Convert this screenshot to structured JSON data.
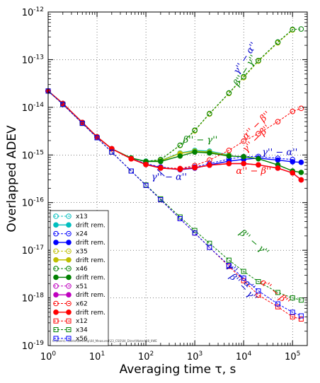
{
  "chart_data": {
    "type": "line",
    "xscale": "log",
    "yscale": "log",
    "xlabel": "Averaging time τ, s",
    "ylabel": "Overlapped ADEV",
    "xlim": [
      1,
      200000
    ],
    "ylim": [
      1e-19,
      1e-12
    ],
    "grid": true,
    "legend_placement": "lower-left",
    "x_ticks": [
      1,
      10,
      100,
      1000,
      10000,
      100000
    ],
    "x_tick_labels": [
      [
        "10",
        "0"
      ],
      [
        "10",
        "1"
      ],
      [
        "10",
        "2"
      ],
      [
        "10",
        "3"
      ],
      [
        "10",
        "4"
      ],
      [
        "10",
        "5"
      ]
    ],
    "y_ticks": [
      1e-19,
      1e-18,
      1e-17,
      1e-16,
      1e-15,
      1e-14,
      1e-13,
      1e-12
    ],
    "y_tick_labels": [
      [
        "10",
        "-19"
      ],
      [
        "10",
        "-18"
      ],
      [
        "10",
        "-17"
      ],
      [
        "10",
        "-16"
      ],
      [
        "10",
        "-15"
      ],
      [
        "10",
        "-14"
      ],
      [
        "10",
        "-13"
      ],
      [
        "10",
        "-12"
      ]
    ],
    "footer_text": "C:\\Users\\...\\Sintel\\Develop\\04_Measured\\23_CSO\\04_Direct\\Notes\\08_IIWE",
    "series": [
      {
        "name": "x13",
        "color": "#00bfbf",
        "marker": "open-circle",
        "dashed": true,
        "x": [
          1,
          2,
          5,
          10,
          20,
          50,
          100,
          200,
          500,
          1000,
          2000,
          5000,
          10000,
          20000,
          50000,
          100000
        ],
        "y": [
          2.2e-14,
          1.2e-14,
          4.8e-15,
          2.4e-15,
          1.35e-15,
          8.6e-16,
          7.4e-16,
          8e-16,
          1.6e-15,
          3.3e-15,
          7.3e-15,
          2e-14,
          4.3e-14,
          9.5e-14,
          2.3e-13,
          4.3e-13
        ]
      },
      {
        "name": "drift rem.",
        "color": "#00bfbf",
        "marker": "filled-circle",
        "dashed": false,
        "x": [
          1,
          2,
          5,
          10,
          20,
          50,
          100,
          200,
          500,
          1000,
          2000,
          5000
        ],
        "y": [
          2.2e-14,
          1.2e-14,
          4.8e-15,
          2.4e-15,
          1.35e-15,
          8.6e-16,
          7.4e-16,
          7.6e-16,
          1.1e-15,
          1.25e-15,
          1.2e-15,
          1e-15
        ]
      },
      {
        "name": "x24",
        "color": "#0000ff",
        "marker": "open-circle",
        "dashed": true,
        "x": [
          1,
          2,
          5,
          10,
          20,
          50,
          100,
          200,
          500,
          1000,
          2000,
          5000,
          10000,
          20000,
          50000,
          100000
        ],
        "y": [
          2.2e-14,
          1.2e-14,
          4.8e-15,
          2.4e-15,
          1.35e-15,
          8.4e-16,
          6.6e-16,
          5.6e-16,
          5.1e-16,
          5.6e-16,
          6.6e-16,
          8.2e-16,
          9.2e-16,
          9.3e-16,
          8.5e-16,
          8e-16
        ]
      },
      {
        "name": "drift rem.",
        "color": "#0000ff",
        "marker": "filled-circle",
        "dashed": false,
        "x": [
          1,
          2,
          5,
          10,
          20,
          50,
          100,
          200,
          500,
          1000,
          2000,
          5000,
          10000,
          20000,
          50000,
          100000,
          150000
        ],
        "y": [
          2.2e-14,
          1.2e-14,
          4.8e-15,
          2.4e-15,
          1.35e-15,
          8.4e-16,
          6.4e-16,
          5.4e-16,
          4.9e-16,
          5.3e-16,
          6.2e-16,
          7.4e-16,
          8.1e-16,
          8.6e-16,
          7.8e-16,
          7.2e-16,
          7e-16
        ]
      },
      {
        "name": "x35",
        "color": "#bfbf00",
        "marker": "open-circle",
        "dashed": true,
        "x": [
          1,
          2,
          5,
          10,
          20,
          50,
          100,
          200,
          500,
          1000,
          2000,
          5000,
          10000,
          20000,
          50000,
          100000
        ],
        "y": [
          2.2e-14,
          1.2e-14,
          4.8e-15,
          2.4e-15,
          1.35e-15,
          8.6e-16,
          7.3e-16,
          7.9e-16,
          1.58e-15,
          3.2e-15,
          7.2e-15,
          1.95e-14,
          4.2e-14,
          9.3e-14,
          2.25e-13,
          4.2e-13
        ]
      },
      {
        "name": "drift rem.",
        "color": "#bfbf00",
        "marker": "filled-circle",
        "dashed": false,
        "x": [
          1,
          2,
          5,
          10,
          20,
          50,
          100,
          200,
          500,
          1000,
          2000,
          5000
        ],
        "y": [
          2.2e-14,
          1.2e-14,
          4.8e-15,
          2.4e-15,
          1.35e-15,
          8.6e-16,
          7.3e-16,
          7.5e-16,
          1.08e-15,
          1.2e-15,
          1.15e-15,
          9.8e-16
        ]
      },
      {
        "name": "x46",
        "color": "#008000",
        "marker": "open-circle",
        "dashed": true,
        "x": [
          1,
          2,
          5,
          10,
          20,
          50,
          100,
          200,
          500,
          1000,
          2000,
          5000,
          10000,
          20000,
          50000,
          100000,
          150000
        ],
        "y": [
          2.2e-14,
          1.2e-14,
          4.8e-15,
          2.4e-15,
          1.35e-15,
          8.6e-16,
          7.3e-16,
          8e-16,
          1.6e-15,
          3.3e-15,
          7.4e-15,
          2e-14,
          4.4e-14,
          9.6e-14,
          2.35e-13,
          4.3e-13,
          4.4e-13
        ]
      },
      {
        "name": "drift rem.",
        "color": "#008000",
        "marker": "filled-circle",
        "dashed": false,
        "x": [
          1,
          2,
          5,
          10,
          20,
          50,
          100,
          200,
          500,
          1000,
          2000,
          5000,
          10000,
          20000,
          50000,
          100000,
          150000
        ],
        "y": [
          2.2e-14,
          1.2e-14,
          4.8e-15,
          2.4e-15,
          1.35e-15,
          8.6e-16,
          7.3e-16,
          7.3e-16,
          9.5e-16,
          1.15e-15,
          1.1e-15,
          9.5e-16,
          9.2e-16,
          8.3e-16,
          6.2e-16,
          4.6e-16,
          4.3e-16
        ]
      },
      {
        "name": "x51",
        "color": "#bf00bf",
        "marker": "open-circle",
        "dashed": true,
        "x": [
          1,
          2,
          5,
          10,
          20,
          50,
          100,
          200,
          500,
          1000,
          2000,
          5000,
          10000,
          20000,
          50000,
          100000,
          150000
        ],
        "y": [
          2.2e-14,
          1.2e-14,
          4.8e-15,
          2.4e-15,
          1.35e-15,
          8.3e-16,
          6.3e-16,
          5.3e-16,
          5e-16,
          5.4e-16,
          6.1e-16,
          6.6e-16,
          6.6e-16,
          6.2e-16,
          5.3e-16,
          4.2e-16,
          3e-16
        ]
      },
      {
        "name": "drift rem.",
        "color": "#bf00bf",
        "marker": "filled-circle",
        "dashed": false,
        "x": [
          1,
          2,
          5,
          10,
          20,
          50,
          100,
          200,
          500,
          1000,
          2000,
          5000,
          10000,
          20000,
          50000,
          100000,
          150000
        ],
        "y": [
          2.2e-14,
          1.2e-14,
          4.8e-15,
          2.4e-15,
          1.35e-15,
          8.3e-16,
          6.3e-16,
          5.3e-16,
          5e-16,
          5.4e-16,
          6.1e-16,
          6.6e-16,
          6.6e-16,
          6.2e-16,
          5.3e-16,
          4.2e-16,
          3e-16
        ]
      },
      {
        "name": "x62",
        "color": "#ff0000",
        "marker": "open-circle",
        "dashed": true,
        "x": [
          1,
          2,
          5,
          10,
          20,
          50,
          100,
          200,
          500,
          1000,
          2000,
          5000,
          10000,
          20000,
          50000,
          100000,
          150000
        ],
        "y": [
          2.2e-14,
          1.2e-14,
          4.8e-15,
          2.4e-15,
          1.35e-15,
          8.3e-16,
          6.3e-16,
          5.4e-16,
          5.2e-16,
          6e-16,
          7.8e-16,
          1.25e-15,
          1.95e-15,
          2.8e-15,
          5e-15,
          8.2e-15,
          9.5e-15
        ]
      },
      {
        "name": "drift rem.",
        "color": "#ff0000",
        "marker": "filled-circle",
        "dashed": false,
        "x": [
          1,
          2,
          5,
          10,
          20,
          50,
          100,
          200,
          500,
          1000,
          2000,
          5000,
          10000,
          20000,
          50000,
          100000,
          150000
        ],
        "y": [
          2.2e-14,
          1.2e-14,
          4.8e-15,
          2.4e-15,
          1.35e-15,
          8.3e-16,
          6.3e-16,
          5.3e-16,
          5e-16,
          5.4e-16,
          6.1e-16,
          6.6e-16,
          6.6e-16,
          6.2e-16,
          5.3e-16,
          4.2e-16,
          3e-16
        ]
      },
      {
        "name": "x12",
        "color": "#ff0000",
        "marker": "open-square",
        "dashed": true,
        "x": [
          1,
          2,
          5,
          10,
          20,
          50,
          100,
          200,
          500,
          1000,
          2000,
          5000,
          10000,
          20000,
          50000,
          100000,
          150000
        ],
        "y": [
          2.2e-14,
          1.15e-14,
          4.6e-15,
          2.3e-15,
          1.15e-15,
          4.6e-16,
          2.3e-16,
          1.15e-16,
          4.6e-17,
          2.3e-17,
          1.15e-17,
          4.6e-18,
          2.3e-18,
          1.15e-18,
          6.5e-19,
          4e-19,
          3.6e-19
        ]
      },
      {
        "name": "x34",
        "color": "#008000",
        "marker": "open-square",
        "dashed": true,
        "x": [
          1,
          2,
          5,
          10,
          20,
          50,
          100,
          200,
          500,
          1000,
          2000,
          5000,
          10000,
          20000,
          50000,
          100000,
          150000
        ],
        "y": [
          2.2e-14,
          1.15e-14,
          4.6e-15,
          2.3e-15,
          1.15e-15,
          4.6e-16,
          2.35e-16,
          1.2e-16,
          5e-17,
          2.6e-17,
          1.4e-17,
          6.2e-18,
          3.6e-18,
          2.2e-18,
          1.3e-18,
          1e-18,
          9e-19
        ]
      },
      {
        "name": "x56",
        "color": "#0000ff",
        "marker": "open-square",
        "dashed": true,
        "x": [
          1,
          2,
          5,
          10,
          20,
          50,
          100,
          200,
          500,
          1000,
          2000,
          5000,
          10000,
          20000,
          50000,
          100000,
          150000
        ],
        "y": [
          2.2e-14,
          1.15e-14,
          4.6e-15,
          2.3e-15,
          1.15e-15,
          4.6e-16,
          2.3e-16,
          1.15e-16,
          4.6e-17,
          2.3e-17,
          1.15e-17,
          4.8e-18,
          2.6e-18,
          1.4e-18,
          7.5e-19,
          5e-19,
          4.2e-19
        ]
      }
    ],
    "annotations": [
      {
        "text": "γ'' − α''",
        "color": "#0000cc",
        "x": 12000,
        "y": 1e-13,
        "rotate": -58
      },
      {
        "text": "β'' − γ''",
        "color": "#008000",
        "x": 12000,
        "y": 5.5e-14,
        "rotate": -58
      },
      {
        "text": "α'' − β''",
        "color": "#ff0000",
        "x": 20000,
        "y": 3.8e-15,
        "rotate": -45
      },
      {
        "text": "γ'' − β''",
        "color": "#ff0000",
        "x": 20000,
        "y": 2e-15,
        "rotate": -45
      },
      {
        "text": "β'' − γ''",
        "color": "#008000",
        "x": 1300,
        "y": 1.8e-15,
        "rotate": 0
      },
      {
        "text": "γ'' − α''",
        "color": "#0000cc",
        "x": 55000,
        "y": 1e-15,
        "rotate": 0
      },
      {
        "text": "α'' − β''",
        "color": "#ff0000",
        "x": 16000,
        "y": 4e-16,
        "rotate": 0
      },
      {
        "text": "γ'' − α''",
        "color": "#0000cc",
        "x": 300,
        "y": 3e-16,
        "rotate": 0
      },
      {
        "text": "β'' − γ''",
        "color": "#008000",
        "x": 15000,
        "y": 1.3e-17,
        "rotate": 40
      },
      {
        "text": "γ'' − α''",
        "color": "#0000cc",
        "x": 8000,
        "y": 2.5e-18,
        "rotate": 45
      },
      {
        "text": "β'' − γ''",
        "color": "#0000cc",
        "x": 9000,
        "y": 1.5e-18,
        "rotate": 45
      },
      {
        "text": "α'' − β''",
        "color": "#ff0000",
        "x": 40000,
        "y": 1.2e-18,
        "rotate": 40
      }
    ]
  }
}
